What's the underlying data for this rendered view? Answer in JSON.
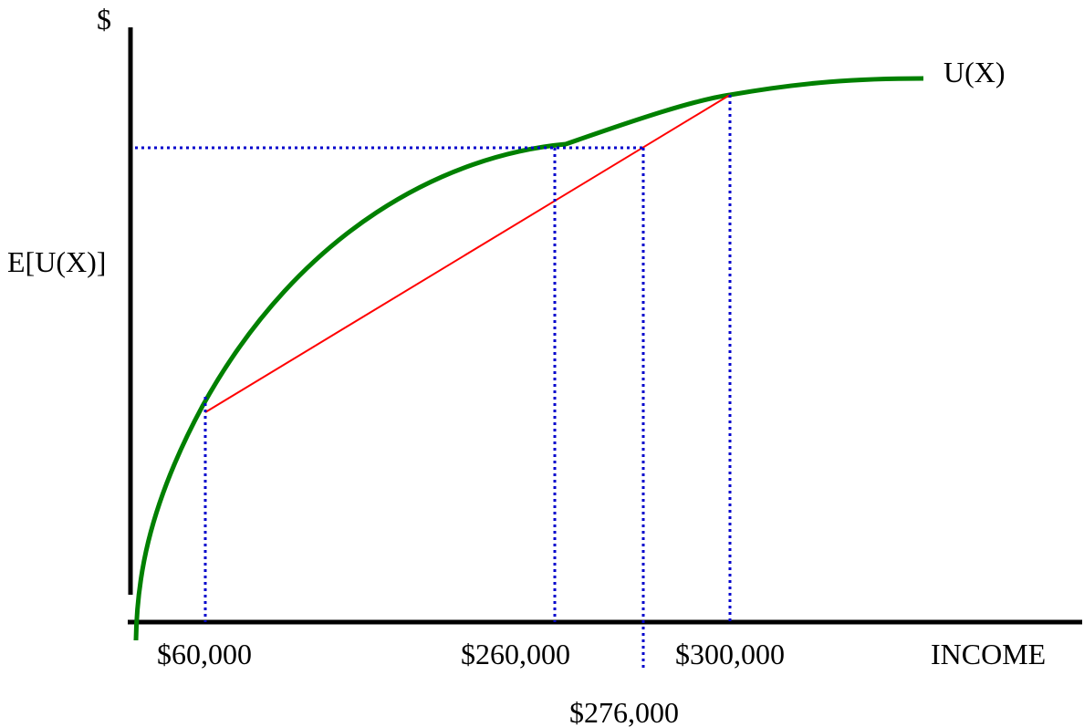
{
  "diagram": {
    "y_axis_label": "$",
    "x_axis_label": "INCOME",
    "curve_label": "U(X)",
    "expected_utility_label": "E[U(X)]",
    "income_labels": {
      "low": "$60,000",
      "certainty_equivalent": "$260,000",
      "expected_value": "$276,000",
      "high": "$300,000"
    },
    "colors": {
      "axes": "#000000",
      "utility_curve": "#008000",
      "chord": "#ff0000",
      "guides": "#0000cc"
    }
  }
}
